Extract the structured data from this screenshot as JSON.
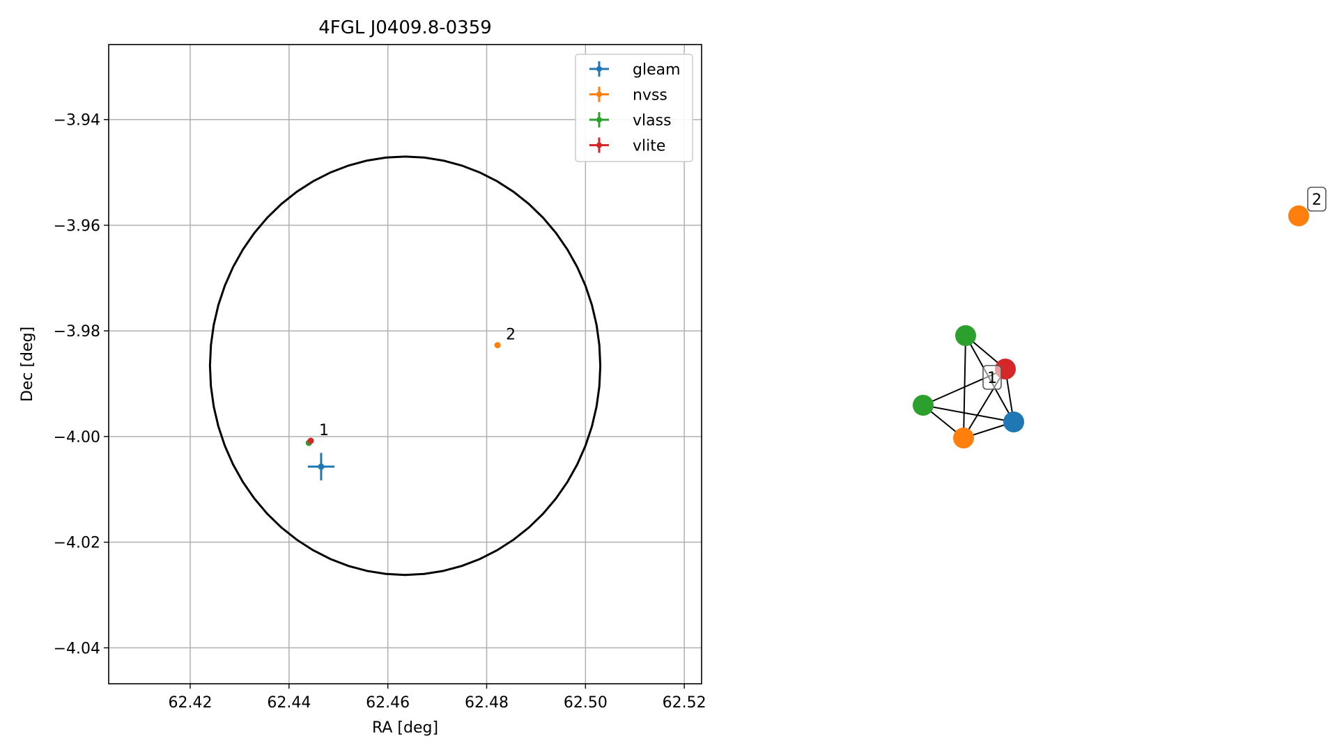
{
  "chart_data": [
    {
      "type": "scatter",
      "title": "4FGL J0409.8-0359",
      "xlabel": "RA [deg]",
      "ylabel": "Dec [deg]",
      "xlim": [
        62.4035,
        62.5235
      ],
      "ylim": [
        -4.0468,
        -3.9258
      ],
      "xticks": [
        62.42,
        62.44,
        62.46,
        62.48,
        62.5,
        62.52
      ],
      "xtick_labels": [
        "62.42",
        "62.44",
        "62.46",
        "62.48",
        "62.50",
        "62.52"
      ],
      "yticks": [
        -3.94,
        -3.96,
        -3.98,
        -4.0,
        -4.02,
        -4.04
      ],
      "ytick_labels": [
        "−3.94",
        "−3.96",
        "−3.98",
        "−4.00",
        "−4.02",
        "−4.04"
      ],
      "grid": true,
      "legend_position": "top-right",
      "ellipse": {
        "center": [
          62.4635,
          -3.9866
        ],
        "ra_semi_axis": 0.0395,
        "dec_semi_axis": 0.0396,
        "color": "#000000"
      },
      "series": [
        {
          "name": "gleam",
          "color": "#1f77b4",
          "points": [
            {
              "x": 62.4465,
              "y": -4.0057,
              "xerr": 0.0027,
              "yerr": 0.0026
            }
          ]
        },
        {
          "name": "nvss",
          "color": "#ff7f0e",
          "points": [
            {
              "x": 62.4822,
              "y": -3.9827,
              "xerr": 0.0003,
              "yerr": 0.0003
            }
          ]
        },
        {
          "name": "vlass",
          "color": "#2ca02c",
          "points": [
            {
              "x": 62.444,
              "y": -4.0012,
              "xerr": 0.0002,
              "yerr": 0.0002
            }
          ]
        },
        {
          "name": "vlite",
          "color": "#d62728",
          "points": [
            {
              "x": 62.4444,
              "y": -4.0008,
              "xerr": 0.0002,
              "yerr": 0.0002
            }
          ]
        }
      ],
      "annotations": [
        {
          "text": "1",
          "x": 62.4444,
          "y": -4.0008
        },
        {
          "text": "2",
          "x": 62.4822,
          "y": -3.9827
        }
      ]
    },
    {
      "type": "network",
      "nodes": [
        {
          "id": "green-top",
          "survey": "vlass",
          "color": "#2ca02c"
        },
        {
          "id": "red",
          "survey": "vlite",
          "color": "#d62728"
        },
        {
          "id": "green-left",
          "survey": "vlass",
          "color": "#2ca02c"
        },
        {
          "id": "orange-bottom",
          "survey": "nvss",
          "color": "#ff7f0e"
        },
        {
          "id": "blue",
          "survey": "gleam",
          "color": "#1f77b4"
        },
        {
          "id": "orange-far",
          "survey": "nvss",
          "color": "#ff7f0e"
        }
      ],
      "edges": [
        [
          "green-top",
          "red"
        ],
        [
          "green-top",
          "blue"
        ],
        [
          "green-top",
          "orange-bottom"
        ],
        [
          "red",
          "green-left"
        ],
        [
          "red",
          "orange-bottom"
        ],
        [
          "red",
          "blue"
        ],
        [
          "green-left",
          "orange-bottom"
        ],
        [
          "green-left",
          "blue"
        ],
        [
          "orange-bottom",
          "blue"
        ]
      ],
      "group_labels": [
        {
          "text": "1"
        },
        {
          "text": "2"
        }
      ]
    }
  ]
}
